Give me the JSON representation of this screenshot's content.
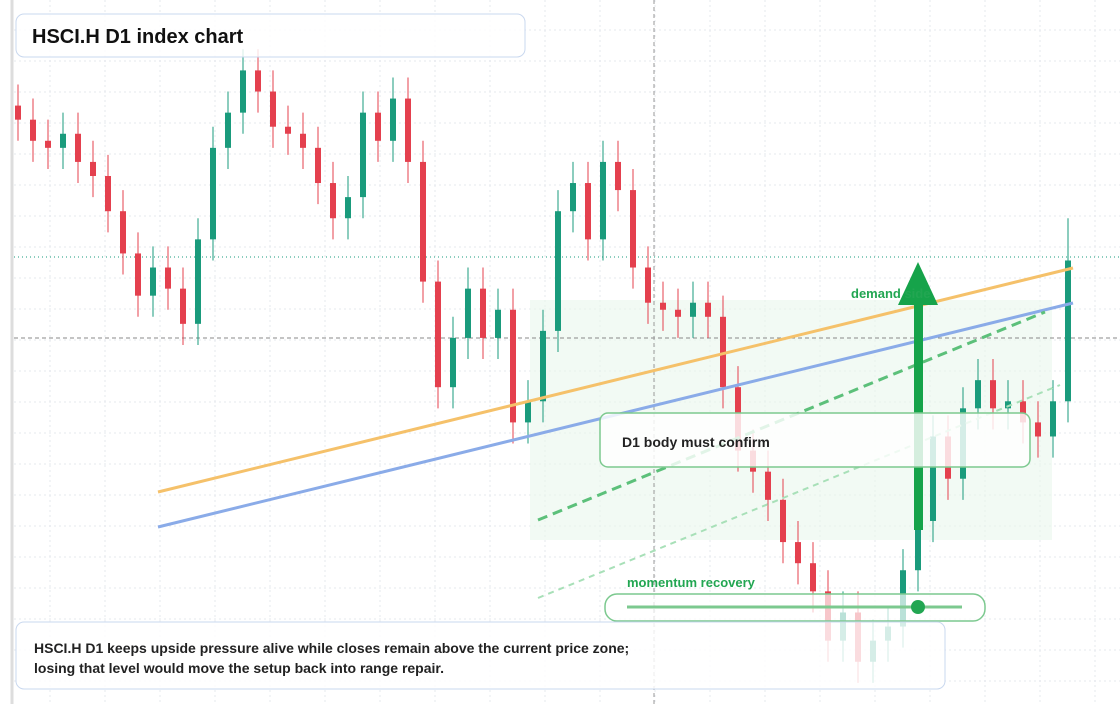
{
  "chart_data": {
    "type": "candlestick",
    "title": "HSCI.H D1 index chart",
    "annotations": [
      "demand side",
      "D1 body must confirm",
      "momentum recovery"
    ],
    "description": [
      "HSCI.H D1 keeps upside pressure alive while closes remain above the current price zone;",
      "losing that level would move the setup back into range repair."
    ],
    "ylim": [
      0,
      100
    ],
    "grid": true,
    "up_color": "#1a9b7c",
    "down_color": "#e4404e",
    "open": [
      85,
      83,
      80,
      79,
      81,
      77,
      75,
      70,
      64,
      58,
      62,
      59,
      54,
      66,
      79,
      84,
      90,
      87,
      82,
      81,
      79,
      74,
      69,
      72,
      84,
      80,
      86,
      77,
      60,
      45,
      52,
      59,
      52,
      56,
      40,
      43,
      53,
      70,
      74,
      66,
      77,
      73,
      62,
      57,
      56,
      55,
      57,
      55,
      45,
      36,
      33,
      29,
      23,
      20,
      16,
      9,
      13,
      6,
      9,
      11,
      19,
      26,
      38,
      32,
      42,
      46,
      42,
      43,
      40,
      38,
      43
    ],
    "high": [
      88,
      86,
      83,
      84,
      84,
      80,
      78,
      73,
      67,
      65,
      65,
      62,
      69,
      82,
      87,
      93,
      93,
      90,
      85,
      84,
      82,
      77,
      75,
      87,
      87,
      89,
      89,
      80,
      63,
      55,
      62,
      62,
      59,
      59,
      46,
      56,
      73,
      77,
      77,
      80,
      80,
      76,
      65,
      60,
      59,
      60,
      60,
      58,
      48,
      39,
      36,
      32,
      26,
      23,
      19,
      16,
      16,
      12,
      14,
      22,
      29,
      41,
      41,
      45,
      49,
      49,
      46,
      46,
      43,
      46,
      69
    ],
    "low": [
      80,
      77,
      76,
      76,
      74,
      72,
      67,
      61,
      55,
      55,
      56,
      51,
      51,
      63,
      76,
      81,
      84,
      79,
      78,
      76,
      71,
      66,
      66,
      69,
      77,
      77,
      74,
      57,
      42,
      42,
      49,
      49,
      49,
      37,
      37,
      40,
      50,
      67,
      63,
      63,
      70,
      59,
      54,
      53,
      52,
      52,
      52,
      42,
      33,
      30,
      26,
      20,
      17,
      13,
      6,
      6,
      3,
      3,
      6,
      8,
      16,
      23,
      29,
      29,
      39,
      39,
      39,
      37,
      35,
      35,
      40
    ],
    "close": [
      83,
      80,
      79,
      81,
      77,
      75,
      70,
      64,
      58,
      62,
      59,
      54,
      66,
      79,
      84,
      90,
      87,
      82,
      81,
      79,
      74,
      69,
      72,
      84,
      80,
      86,
      77,
      60,
      45,
      52,
      59,
      52,
      56,
      40,
      43,
      53,
      70,
      74,
      66,
      77,
      73,
      62,
      57,
      56,
      55,
      57,
      55,
      45,
      36,
      33,
      29,
      23,
      20,
      16,
      9,
      13,
      6,
      9,
      11,
      19,
      26,
      38,
      32,
      42,
      46,
      42,
      43,
      40,
      38,
      43,
      63
    ]
  }
}
